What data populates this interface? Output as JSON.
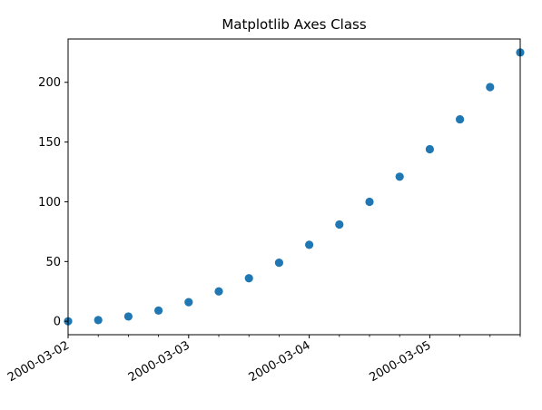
{
  "chart_data": {
    "type": "scatter",
    "title": "Matplotlib Axes Class",
    "xlabel": "",
    "ylabel": "",
    "x_tick_labels": [
      "2000-03-02",
      "2000-03-03",
      "2000-03-04",
      "2000-03-05"
    ],
    "y_tick_labels": [
      "0",
      "50",
      "100",
      "150",
      "200"
    ],
    "xlim": [
      "2000-03-02T00:00",
      "2000-03-05T18:00"
    ],
    "ylim": [
      -11.25,
      236.25
    ],
    "grid": false,
    "marker_color": "#1f77b4",
    "series": [
      {
        "x": [
          "2000-03-02T00:00",
          "2000-03-02T06:00",
          "2000-03-02T12:00",
          "2000-03-02T18:00",
          "2000-03-03T00:00",
          "2000-03-03T06:00",
          "2000-03-03T12:00",
          "2000-03-03T18:00",
          "2000-03-04T00:00",
          "2000-03-04T06:00",
          "2000-03-04T12:00",
          "2000-03-04T18:00",
          "2000-03-05T00:00",
          "2000-03-05T06:00",
          "2000-03-05T12:00",
          "2000-03-05T18:00"
        ],
        "y": [
          0,
          1,
          4,
          9,
          16,
          25,
          36,
          49,
          64,
          81,
          100,
          121,
          144,
          169,
          196,
          225
        ]
      }
    ]
  }
}
